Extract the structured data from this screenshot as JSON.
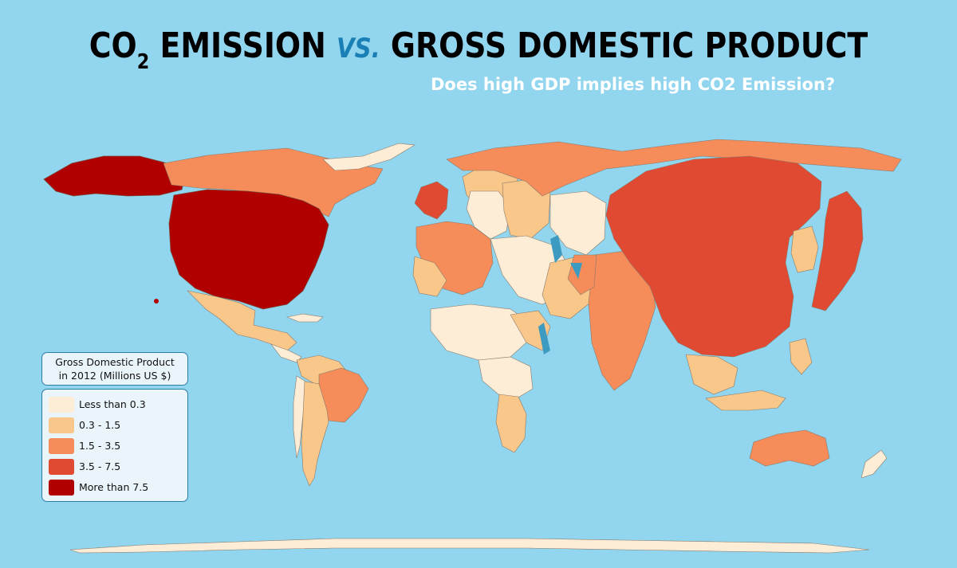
{
  "title": {
    "part1": "CO",
    "part1_sub": "2",
    "part2": " EMISSION ",
    "vs": "VS.",
    "part3": " GROSS DOMESTIC PRODUCT"
  },
  "subtitle": "Does high GDP implies high CO2 Emission?",
  "legend": {
    "title_line1": "Gross Domestic Product",
    "title_line2": "in 2012 (Millions US $)",
    "items": [
      {
        "label": "Less than 0.3",
        "color": "#fdecd6"
      },
      {
        "label": "0.3 - 1.5",
        "color": "#f9c78a"
      },
      {
        "label": "1.5 - 3.5",
        "color": "#f58c5a"
      },
      {
        "label": "3.5 - 7.5",
        "color": "#e04a33"
      },
      {
        "label": "More than 7.5",
        "color": "#b00000"
      }
    ]
  },
  "colors": {
    "ocean": "#92d5ee",
    "lake": "#3d9bc2",
    "border": "#8a7a6a"
  }
}
